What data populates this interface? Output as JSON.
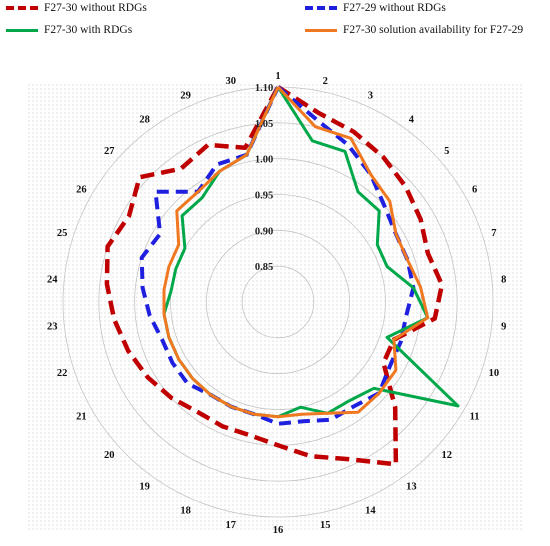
{
  "chart_data": {
    "type": "radar",
    "categories": [
      "1",
      "2",
      "3",
      "4",
      "5",
      "6",
      "7",
      "8",
      "9",
      "10",
      "11",
      "12",
      "13",
      "14",
      "15",
      "16",
      "17",
      "18",
      "19",
      "20",
      "21",
      "22",
      "23",
      "24",
      "25",
      "26",
      "27",
      "28",
      "29",
      "30"
    ],
    "rlim": [
      0.8,
      1.1
    ],
    "ticks": [
      "0.85",
      "0.90",
      "0.95",
      "1.00",
      "1.05",
      "1.10"
    ],
    "tick_values": [
      0.85,
      0.9,
      0.95,
      1.0,
      1.05,
      1.1
    ],
    "legend_position": "top",
    "series": [
      {
        "name": "F27-30 without RDGs",
        "color": "#c00000",
        "dash": "14,7",
        "width": 4.5,
        "values": [
          1.1,
          1.07,
          1.06,
          1.05,
          1.04,
          1.03,
          1.02,
          1.03,
          1.02,
          0.97,
          0.97,
          1.02,
          1.08,
          1.04,
          1.02,
          1.0,
          0.99,
          0.99,
          0.99,
          1.0,
          1.01,
          1.02,
          1.03,
          1.04,
          1.05,
          1.04,
          1.06,
          1.03,
          1.04,
          1.02
        ]
      },
      {
        "name": "F27-29 without RDGs",
        "color": "#1f1fe0",
        "dash": "12,7",
        "width": 4,
        "values": [
          1.1,
          1.06,
          1.04,
          1.02,
          1.0,
          0.99,
          0.99,
          0.99,
          0.98,
          0.98,
          0.98,
          0.99,
          0.98,
          0.98,
          0.97,
          0.97,
          0.96,
          0.96,
          0.96,
          0.97,
          0.97,
          0.97,
          0.98,
          0.99,
          1.0,
          0.99,
          1.03,
          0.99,
          1.01,
          1.01
        ]
      },
      {
        "name": "F27-30 with RDGs",
        "color": "#00a84a",
        "dash": "",
        "width": 3,
        "values": [
          1.1,
          1.03,
          1.03,
          0.99,
          0.99,
          0.96,
          0.96,
          0.99,
          1.01,
          0.96,
          1.09,
          0.98,
          0.97,
          0.97,
          0.95,
          0.96,
          0.96,
          0.96,
          0.96,
          0.96,
          0.96,
          0.96,
          0.96,
          0.95,
          0.95,
          0.95,
          0.98,
          0.98,
          1.0,
          1.01
        ]
      },
      {
        "name": "F27-30 solution availability for F27-29",
        "color": "#f07820",
        "dash": "",
        "width": 3,
        "values": [
          1.1,
          1.05,
          1.05,
          1.02,
          1.01,
          0.99,
          0.99,
          1.0,
          1.01,
          0.97,
          0.99,
          0.99,
          0.99,
          0.97,
          0.96,
          0.96,
          0.96,
          0.96,
          0.96,
          0.96,
          0.96,
          0.96,
          0.96,
          0.96,
          0.96,
          0.96,
          0.99,
          0.99,
          1.0,
          1.01
        ]
      }
    ]
  }
}
